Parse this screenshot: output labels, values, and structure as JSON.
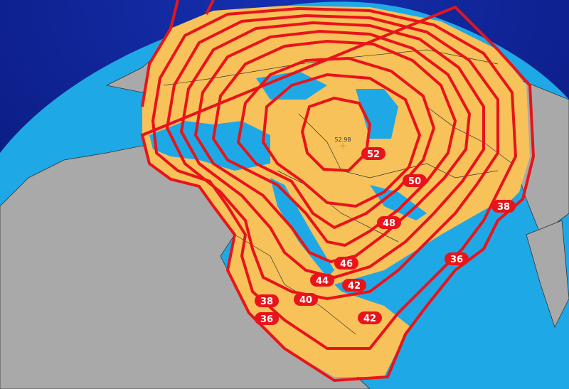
{
  "map": {
    "colors": {
      "space": "#0a1a8c",
      "ocean": "#1fa8e6",
      "land": "#a9a9a9",
      "coverage": "#f7c25a",
      "contour": "#e8141a"
    },
    "peak_value": "52.98",
    "contour_labels": [
      "52",
      "50",
      "48",
      "46",
      "44",
      "42",
      "42",
      "40",
      "38",
      "36",
      "36",
      "38"
    ]
  }
}
